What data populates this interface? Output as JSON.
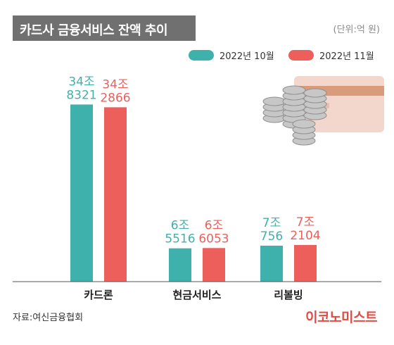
{
  "header": {
    "title": "카드사 금융서비스 잔액 추이",
    "unit": "(단위:억 원)"
  },
  "colors": {
    "series_1": "#3fb1ad",
    "series_2": "#ec5f5a",
    "title_bg": "#707070",
    "brand": "#e14b43"
  },
  "chart_data": {
    "type": "bar",
    "title": "카드사 금융서비스 잔액 추이",
    "unit": "(단위:억 원)",
    "categories": [
      "카드론",
      "현금서비스",
      "리볼빙"
    ],
    "series": [
      {
        "name": "2022년 10월",
        "values": [
          348321,
          65516,
          70756
        ],
        "labels": [
          [
            "34조",
            "8321"
          ],
          [
            "6조",
            "5516"
          ],
          [
            "7조",
            "756"
          ]
        ]
      },
      {
        "name": "2022년 11월",
        "values": [
          342866,
          66053,
          72104
        ],
        "labels": [
          [
            "34조",
            "2866"
          ],
          [
            "6조",
            "6053"
          ],
          [
            "7조",
            "2104"
          ]
        ]
      }
    ],
    "ylim": [
      0,
      360000
    ],
    "legend": "top-right",
    "grid": false
  },
  "footer": {
    "source": "자료:여신금융협회",
    "brand": "이코노미스트"
  }
}
